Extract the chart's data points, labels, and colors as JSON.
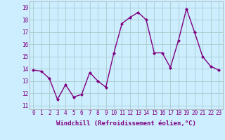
{
  "x": [
    0,
    1,
    2,
    3,
    4,
    5,
    6,
    7,
    8,
    9,
    10,
    11,
    12,
    13,
    14,
    15,
    16,
    17,
    18,
    19,
    20,
    21,
    22,
    23
  ],
  "y": [
    13.9,
    13.8,
    13.2,
    11.5,
    12.7,
    11.7,
    11.9,
    13.7,
    13.0,
    12.5,
    15.3,
    17.7,
    18.2,
    18.6,
    18.0,
    15.3,
    15.3,
    14.1,
    16.3,
    18.9,
    17.0,
    15.0,
    14.2,
    13.9
  ],
  "line_color": "#800080",
  "marker": "D",
  "marker_size": 2.0,
  "line_width": 1.0,
  "bg_color": "#cceeff",
  "grid_color": "#aacccc",
  "xlabel": "Windchill (Refroidissement éolien,°C)",
  "xlabel_fontsize": 6.5,
  "tick_fontsize": 5.5,
  "ytick_color": "#800080",
  "xtick_color": "#800080",
  "yticks": [
    11,
    12,
    13,
    14,
    15,
    16,
    17,
    18,
    19
  ],
  "xticks": [
    0,
    1,
    2,
    3,
    4,
    5,
    6,
    7,
    8,
    9,
    10,
    11,
    12,
    13,
    14,
    15,
    16,
    17,
    18,
    19,
    20,
    21,
    22,
    23
  ],
  "ylim": [
    10.7,
    19.5
  ],
  "xlim": [
    -0.5,
    23.5
  ]
}
